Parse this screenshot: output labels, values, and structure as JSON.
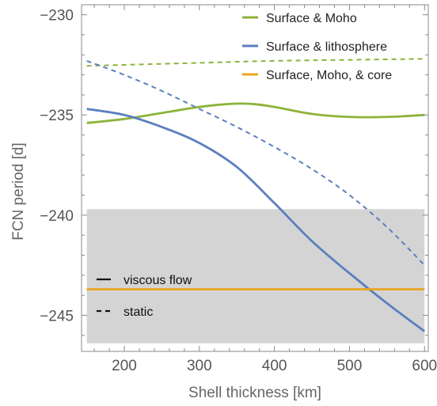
{
  "chart_data": {
    "type": "line",
    "xlabel": "Shell thickness [km]",
    "ylabel": "FCN period [d]",
    "xlim": [
      143,
      605
    ],
    "ylim": [
      -246.8,
      -229.5
    ],
    "x_ticks": [
      200,
      300,
      400,
      500,
      600
    ],
    "y_ticks": [
      -230,
      -235,
      -240,
      -245
    ],
    "grid": false,
    "legend_position": "top-right",
    "shaded_band": {
      "y_from": -246.4,
      "y_to": -239.7,
      "color": "#d4d4d4"
    },
    "line_styles": [
      {
        "name": "viscous flow",
        "dash": "solid"
      },
      {
        "name": "static",
        "dash": "dashed"
      }
    ],
    "series": [
      {
        "name": "Surface & Moho",
        "color": "#8db33a",
        "dash": "solid",
        "x": [
          150,
          200,
          250,
          300,
          340,
          370,
          400,
          450,
          500,
          550,
          600
        ],
        "y": [
          -235.4,
          -235.2,
          -234.9,
          -234.6,
          -234.45,
          -234.45,
          -234.6,
          -234.95,
          -235.1,
          -235.1,
          -235.0
        ]
      },
      {
        "name": "Surface & Moho",
        "color": "#8db33a",
        "dash": "dashed",
        "x": [
          150,
          200,
          300,
          400,
          500,
          600
        ],
        "y": [
          -232.55,
          -232.5,
          -232.4,
          -232.3,
          -232.25,
          -232.2
        ]
      },
      {
        "name": "Surface & lithosphere",
        "color": "#5b7fbf",
        "dash": "solid",
        "x": [
          150,
          200,
          250,
          300,
          350,
          400,
          450,
          500,
          550,
          600
        ],
        "y": [
          -234.7,
          -235.0,
          -235.6,
          -236.4,
          -237.6,
          -239.4,
          -241.3,
          -242.9,
          -244.4,
          -245.8
        ]
      },
      {
        "name": "Surface & lithosphere",
        "color": "#5b7fbf",
        "dash": "dashed",
        "x": [
          150,
          200,
          250,
          300,
          350,
          400,
          450,
          500,
          550,
          600
        ],
        "y": [
          -232.3,
          -233.0,
          -233.8,
          -234.7,
          -235.6,
          -236.6,
          -237.7,
          -239.0,
          -240.6,
          -242.5
        ]
      },
      {
        "name": "Surface, Moho, & core",
        "color": "#e8a51f",
        "dash": "solid",
        "x": [
          150,
          600
        ],
        "y": [
          -243.7,
          -243.7
        ]
      }
    ],
    "legend": [
      {
        "label": "Surface & Moho",
        "color": "#8db33a"
      },
      {
        "label": "Surface & lithosphere",
        "color": "#5b7fbf"
      },
      {
        "label": "Surface, Moho, & core",
        "color": "#e8a51f"
      }
    ]
  }
}
